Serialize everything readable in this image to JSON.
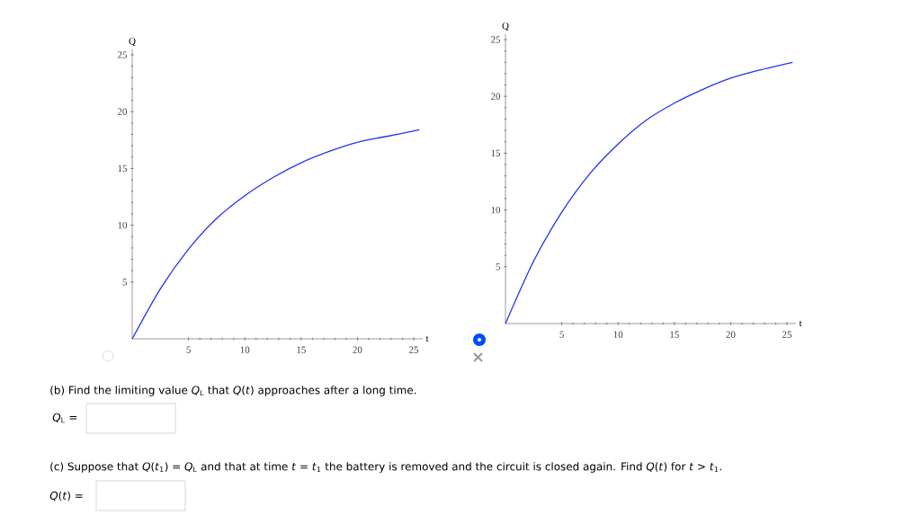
{
  "chart_data": [
    {
      "type": "line",
      "xlabel": "t",
      "ylabel": "Q",
      "x": [
        0,
        2.5,
        5,
        7.5,
        10,
        12.5,
        15,
        17.5,
        20,
        22.5,
        25.5
      ],
      "series": [
        {
          "color": "#2233ee",
          "values": [
            0,
            4.4,
            7.9,
            10.6,
            12.6,
            14.2,
            15.5,
            16.5,
            17.3,
            17.8,
            18.4
          ]
        }
      ],
      "xlim": [
        0,
        25.8
      ],
      "ylim": [
        0,
        25.5
      ],
      "xticks": [
        5,
        10,
        15,
        20,
        25
      ],
      "yticks": [
        5,
        10,
        15,
        20,
        25
      ],
      "grid": false,
      "marker": "none",
      "line_style": "solid",
      "annotations": [
        "(b) Find the limiting value *Q*$_{L}$ that *Q*(*t*) approaches after a long time.",
        "*Q*$_{L}$ =",
        "(c) Suppose that *Q*(*t*$_{1}$) = *Q*$_{L}$ and that at time *t* = *t*$_{1}$ the battery is removed and the circuit is closed again. Find *Q*(*t*) for *t* > *t*$_{1}$.",
        "*Q*(*t*) ="
      ]
    },
    {
      "type": "line",
      "xlabel": "t",
      "ylabel": "Q",
      "x": [
        0,
        2.5,
        5,
        7.5,
        10,
        12.5,
        15,
        17.5,
        20,
        22.5,
        25.5
      ],
      "series": [
        {
          "color": "#2233ee",
          "values": [
            0,
            5.5,
            9.8,
            13.2,
            15.8,
            17.9,
            19.4,
            20.6,
            21.6,
            22.3,
            23.0
          ]
        }
      ],
      "xlim": [
        0,
        25.8
      ],
      "ylim": [
        0,
        25.5
      ],
      "xticks": [
        5,
        10,
        15,
        20,
        25
      ],
      "yticks": [
        5,
        10,
        15,
        20,
        25
      ],
      "grid": false,
      "marker": "none",
      "line_style": "solid"
    }
  ]
}
